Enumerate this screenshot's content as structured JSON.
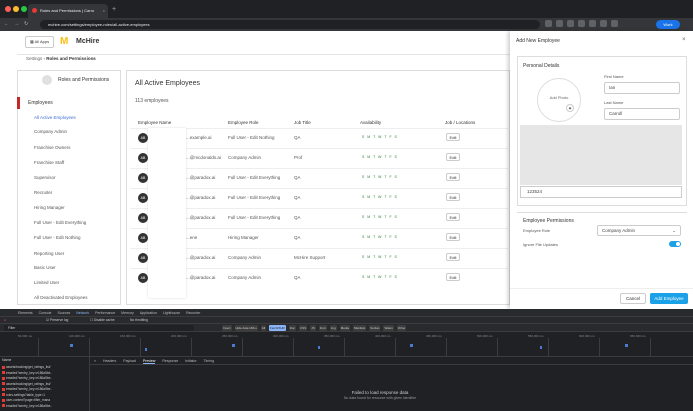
{
  "browser": {
    "tab_title": "Roles and Permissions | Carro",
    "url": "mchire.com/settings/employee-roles/all-active-employees",
    "profile": "Work"
  },
  "app": {
    "all_apps": "All Apps",
    "brand": "McHire",
    "logo": "M"
  },
  "breadcrumb": {
    "root": "Settings",
    "sep": "›",
    "current": "Roles and Permissions"
  },
  "sidebar": {
    "title": "Roles and Permissions",
    "section": "Employees",
    "items": [
      "All Active Employees",
      "Company Admin",
      "Franchise Owners",
      "Franchise Staff",
      "Supervisor",
      "Recruiter",
      "Hiring Manager",
      "Full User - Edit Everything",
      "Full User - Edit Nothing",
      "Reporting User",
      "Basic User",
      "Limited User",
      "All Deactivated Employees"
    ]
  },
  "main": {
    "title": "All Active Employees",
    "count": "113 employees",
    "headers": [
      "Employee Name",
      "Employee Role",
      "Job Title",
      "Availability",
      "Job / Locations"
    ],
    "rows": [
      {
        "initials": "AB",
        "email": "...example.ai",
        "role": "Full User - Edit Nothing",
        "title": "QA",
        "days": "S M T W T F S",
        "edit": "Edit"
      },
      {
        "initials": "AB",
        "email": "...@mcdonalds.ai",
        "role": "Company Admin",
        "title": "Prof",
        "days": "S M T W T F S",
        "edit": "Edit"
      },
      {
        "initials": "AB",
        "email": "...@paradox.ai",
        "role": "Full User - Edit Everything",
        "title": "QA",
        "days": "S M T W T F S",
        "edit": "Edit"
      },
      {
        "initials": "AB",
        "email": "...@paradox.ai",
        "role": "Full User - Edit Everything",
        "title": "QA",
        "days": "S M T W T F S",
        "edit": "Edit"
      },
      {
        "initials": "AB",
        "email": "...@paradox.ai",
        "role": "Full User - Edit Everything",
        "title": "QA",
        "days": "S M T W T F S",
        "edit": "Edit"
      },
      {
        "initials": "AB",
        "email": "...ene",
        "role": "Hiring Manager",
        "title": "QA",
        "days": "S M T W T F S",
        "edit": "Edit"
      },
      {
        "initials": "AB",
        "email": "...@paradox.ai",
        "role": "Company Admin",
        "title": "McHire Support",
        "days": "S M T W T F S",
        "edit": "Edit"
      },
      {
        "initials": "AB",
        "email": "...@paradox.ai",
        "role": "Company Admin",
        "title": "QA",
        "days": "S M T W T F S",
        "edit": "Edit"
      }
    ]
  },
  "modal": {
    "title": "Add New Employee",
    "close": "×",
    "personal_title": "Personal Details",
    "add_photo": "Add Photo",
    "first_name_label": "First Name",
    "first_name": "Ian",
    "last_name_label": "Last Name",
    "last_name": "Carroll",
    "phone": "123524",
    "perm_title": "Employee Permissions",
    "role_label": "Employee Role",
    "role_value": "Company Admin",
    "ignore_label": "Ignore File Updates",
    "cancel": "Cancel",
    "add": "Add Employee"
  },
  "devtools": {
    "tabs": [
      "Elements",
      "Console",
      "Sources",
      "Network",
      "Performance",
      "Memory",
      "Application",
      "Lighthouse",
      "Recorder"
    ],
    "active_tab": "Network",
    "toolbar": [
      "Preserve log",
      "Disable cache",
      "No throttling"
    ],
    "filter_placeholder": "Filter",
    "filter_opts": [
      "Invert",
      "Hide data URLs",
      "All",
      "Fetch/XHR",
      "Doc",
      "CSS",
      "JS",
      "Font",
      "Img",
      "Media",
      "Manifest",
      "Socket",
      "Wasm",
      "Other"
    ],
    "ticks": [
      "50,000 ms",
      "100,000 ms",
      "150,000 ms",
      "200,000 ms",
      "250,000 ms",
      "300,000 ms",
      "350,000 ms",
      "400,000 ms",
      "450,000 ms",
      "500,000 ms",
      "550,000 ms",
      "600,000 ms",
      "650,000 ms"
    ],
    "name_header": "Name",
    "requests": [
      "assets/tracking/get_ratings_list/",
      "emailed?sentry_key=e186a5be..",
      "emailed?sentry_key=e186a5be..",
      "assets/tracking/get_ratings_list/",
      "emailed?sentry_key=e186a5be..",
      "roles-settings?table_type=1",
      "user-context?page=filter_mana",
      "emailed?sentry_key=e186a5be.."
    ],
    "resp_tabs": [
      "Headers",
      "Payload",
      "Preview",
      "Response",
      "Initiator",
      "Timing"
    ],
    "resp_active": "Preview",
    "failed": "Failed to load response data",
    "failed_sub": "No data found for resource with given identifier"
  }
}
